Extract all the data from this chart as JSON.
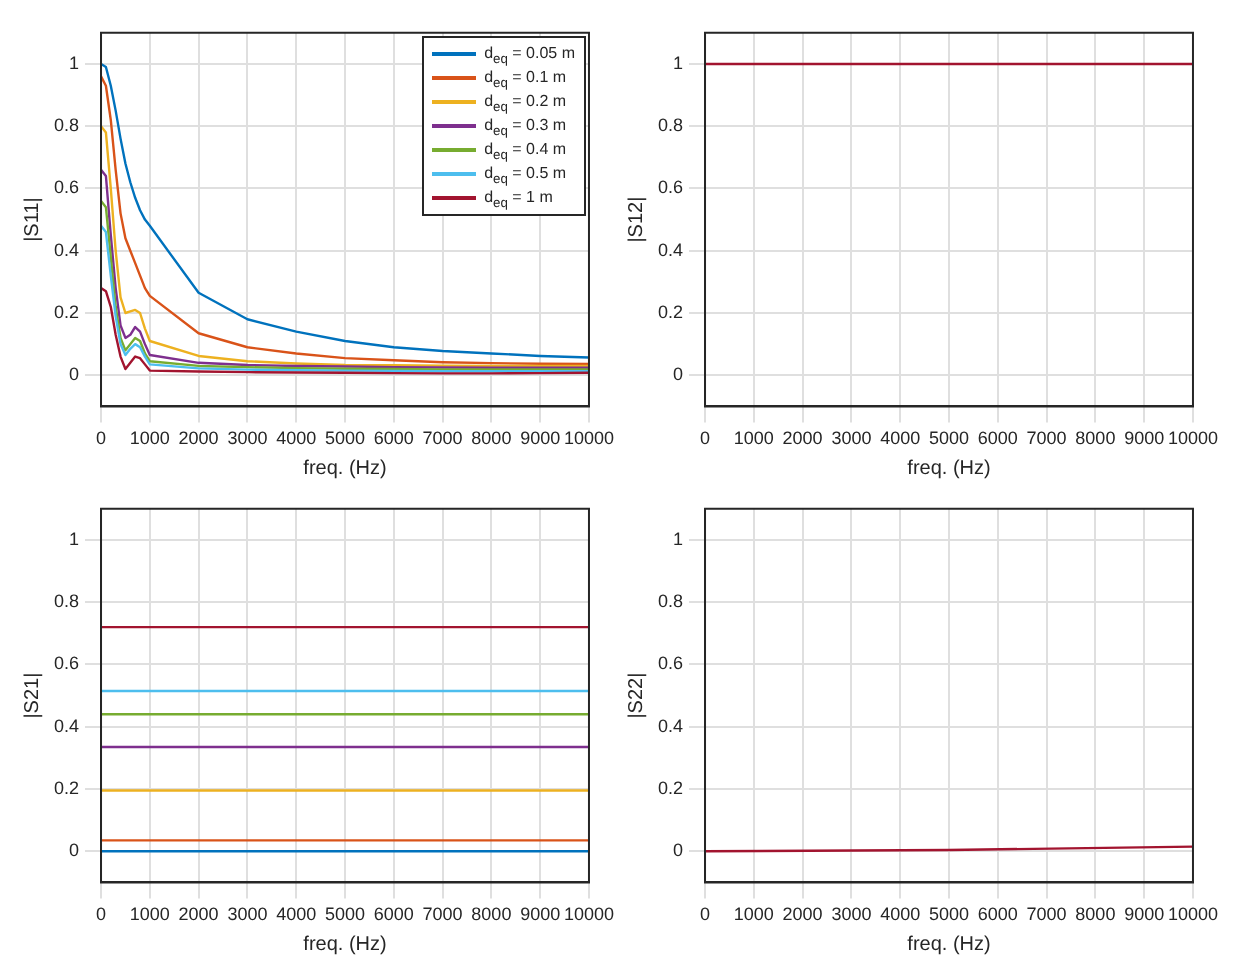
{
  "chart_data": [
    {
      "type": "line",
      "ylabel": "|S11|",
      "xlabel": "freq. (Hz)",
      "x": [
        0,
        100,
        200,
        300,
        400,
        500,
        600,
        700,
        800,
        900,
        1000,
        2000,
        3000,
        4000,
        5000,
        6000,
        7000,
        8000,
        9000,
        10000
      ],
      "xlim": [
        0,
        10000
      ],
      "xticks": [
        0,
        1000,
        2000,
        3000,
        4000,
        5000,
        6000,
        7000,
        8000,
        9000,
        10000
      ],
      "ylim": [
        -0.1,
        1.1
      ],
      "yticks": [
        0,
        0.2,
        0.4,
        0.6,
        0.8,
        1
      ],
      "grid": true,
      "legend": "top right",
      "marker": "none",
      "line_style": "solid",
      "series": [
        {
          "name": "d$_{eq}$ = 0.05 m",
          "color": "#0072bd",
          "values": [
            1.0,
            0.99,
            0.93,
            0.85,
            0.76,
            0.68,
            0.62,
            0.57,
            0.53,
            0.5,
            0.48,
            0.265,
            0.18,
            0.14,
            0.11,
            0.09,
            0.078,
            0.07,
            0.062,
            0.057
          ]
        },
        {
          "name": "d$_{eq}$ = 0.1 m",
          "color": "#d95319",
          "values": [
            0.96,
            0.93,
            0.82,
            0.66,
            0.52,
            0.44,
            0.4,
            0.36,
            0.32,
            0.28,
            0.255,
            0.135,
            0.09,
            0.07,
            0.055,
            0.048,
            0.042,
            0.039,
            0.037,
            0.036
          ]
        },
        {
          "name": "d$_{eq}$ = 0.2 m",
          "color": "#edb120",
          "values": [
            0.8,
            0.78,
            0.6,
            0.4,
            0.25,
            0.2,
            0.205,
            0.21,
            0.2,
            0.15,
            0.11,
            0.062,
            0.045,
            0.038,
            0.033,
            0.032,
            0.031,
            0.03,
            0.03,
            0.03
          ]
        },
        {
          "name": "d$_{eq}$ = 0.3 m",
          "color": "#7e2f8e",
          "values": [
            0.66,
            0.64,
            0.45,
            0.28,
            0.16,
            0.12,
            0.13,
            0.155,
            0.14,
            0.1,
            0.065,
            0.04,
            0.033,
            0.03,
            0.028,
            0.026,
            0.025,
            0.024,
            0.024,
            0.024
          ]
        },
        {
          "name": "d$_{eq}$ = 0.4 m",
          "color": "#77ac30",
          "values": [
            0.56,
            0.54,
            0.38,
            0.22,
            0.12,
            0.08,
            0.1,
            0.12,
            0.11,
            0.07,
            0.045,
            0.03,
            0.026,
            0.023,
            0.021,
            0.02,
            0.019,
            0.019,
            0.019,
            0.019
          ]
        },
        {
          "name": "d$_{eq}$ = 0.5 m",
          "color": "#4dbeee",
          "values": [
            0.48,
            0.46,
            0.32,
            0.19,
            0.1,
            0.065,
            0.085,
            0.1,
            0.09,
            0.06,
            0.035,
            0.022,
            0.018,
            0.016,
            0.015,
            0.014,
            0.013,
            0.013,
            0.013,
            0.013
          ]
        },
        {
          "name": "d$_{eq}$ = 1 m",
          "color": "#a2142f",
          "values": [
            0.28,
            0.27,
            0.22,
            0.13,
            0.06,
            0.02,
            0.04,
            0.06,
            0.055,
            0.035,
            0.015,
            0.012,
            0.01,
            0.009,
            0.008,
            0.007,
            0.006,
            0.006,
            0.007,
            0.008
          ]
        }
      ]
    },
    {
      "type": "line",
      "ylabel": "|S12|",
      "xlabel": "freq. (Hz)",
      "x": [
        0,
        10000
      ],
      "xlim": [
        0,
        10000
      ],
      "xticks": [
        0,
        1000,
        2000,
        3000,
        4000,
        5000,
        6000,
        7000,
        8000,
        9000,
        10000
      ],
      "ylim": [
        -0.1,
        1.1
      ],
      "yticks": [
        0,
        0.2,
        0.4,
        0.6,
        0.8,
        1
      ],
      "grid": true,
      "marker": "none",
      "line_style": "solid",
      "series": [
        {
          "color": "#a2142f",
          "values": [
            1,
            1
          ]
        }
      ]
    },
    {
      "type": "line",
      "ylabel": "|S21|",
      "xlabel": "freq. (Hz)",
      "x": [
        0,
        10000
      ],
      "xlim": [
        0,
        10000
      ],
      "xticks": [
        0,
        1000,
        2000,
        3000,
        4000,
        5000,
        6000,
        7000,
        8000,
        9000,
        10000
      ],
      "ylim": [
        -0.1,
        1.1
      ],
      "yticks": [
        0,
        0.2,
        0.4,
        0.6,
        0.8,
        1
      ],
      "grid": true,
      "marker": "none",
      "line_style": "solid",
      "series": [
        {
          "color": "#0072bd",
          "values": [
            0,
            0
          ]
        },
        {
          "color": "#d95319",
          "values": [
            0.035,
            0.035
          ]
        },
        {
          "color": "#edb120",
          "values": [
            0.195,
            0.195
          ]
        },
        {
          "color": "#7e2f8e",
          "values": [
            0.335,
            0.335
          ]
        },
        {
          "color": "#77ac30",
          "values": [
            0.44,
            0.44
          ]
        },
        {
          "color": "#4dbeee",
          "values": [
            0.515,
            0.515
          ]
        },
        {
          "color": "#a2142f",
          "values": [
            0.72,
            0.72
          ]
        }
      ]
    },
    {
      "type": "line",
      "ylabel": "|S22|",
      "xlabel": "freq. (Hz)",
      "x": [
        0,
        5000,
        10000
      ],
      "xlim": [
        0,
        10000
      ],
      "xticks": [
        0,
        1000,
        2000,
        3000,
        4000,
        5000,
        6000,
        7000,
        8000,
        9000,
        10000
      ],
      "ylim": [
        -0.1,
        1.1
      ],
      "yticks": [
        0,
        0.2,
        0.4,
        0.6,
        0.8,
        1
      ],
      "grid": true,
      "marker": "none",
      "line_style": "solid",
      "series": [
        {
          "color": "#a2142f",
          "values": [
            0,
            0.004,
            0.015
          ]
        }
      ]
    }
  ]
}
